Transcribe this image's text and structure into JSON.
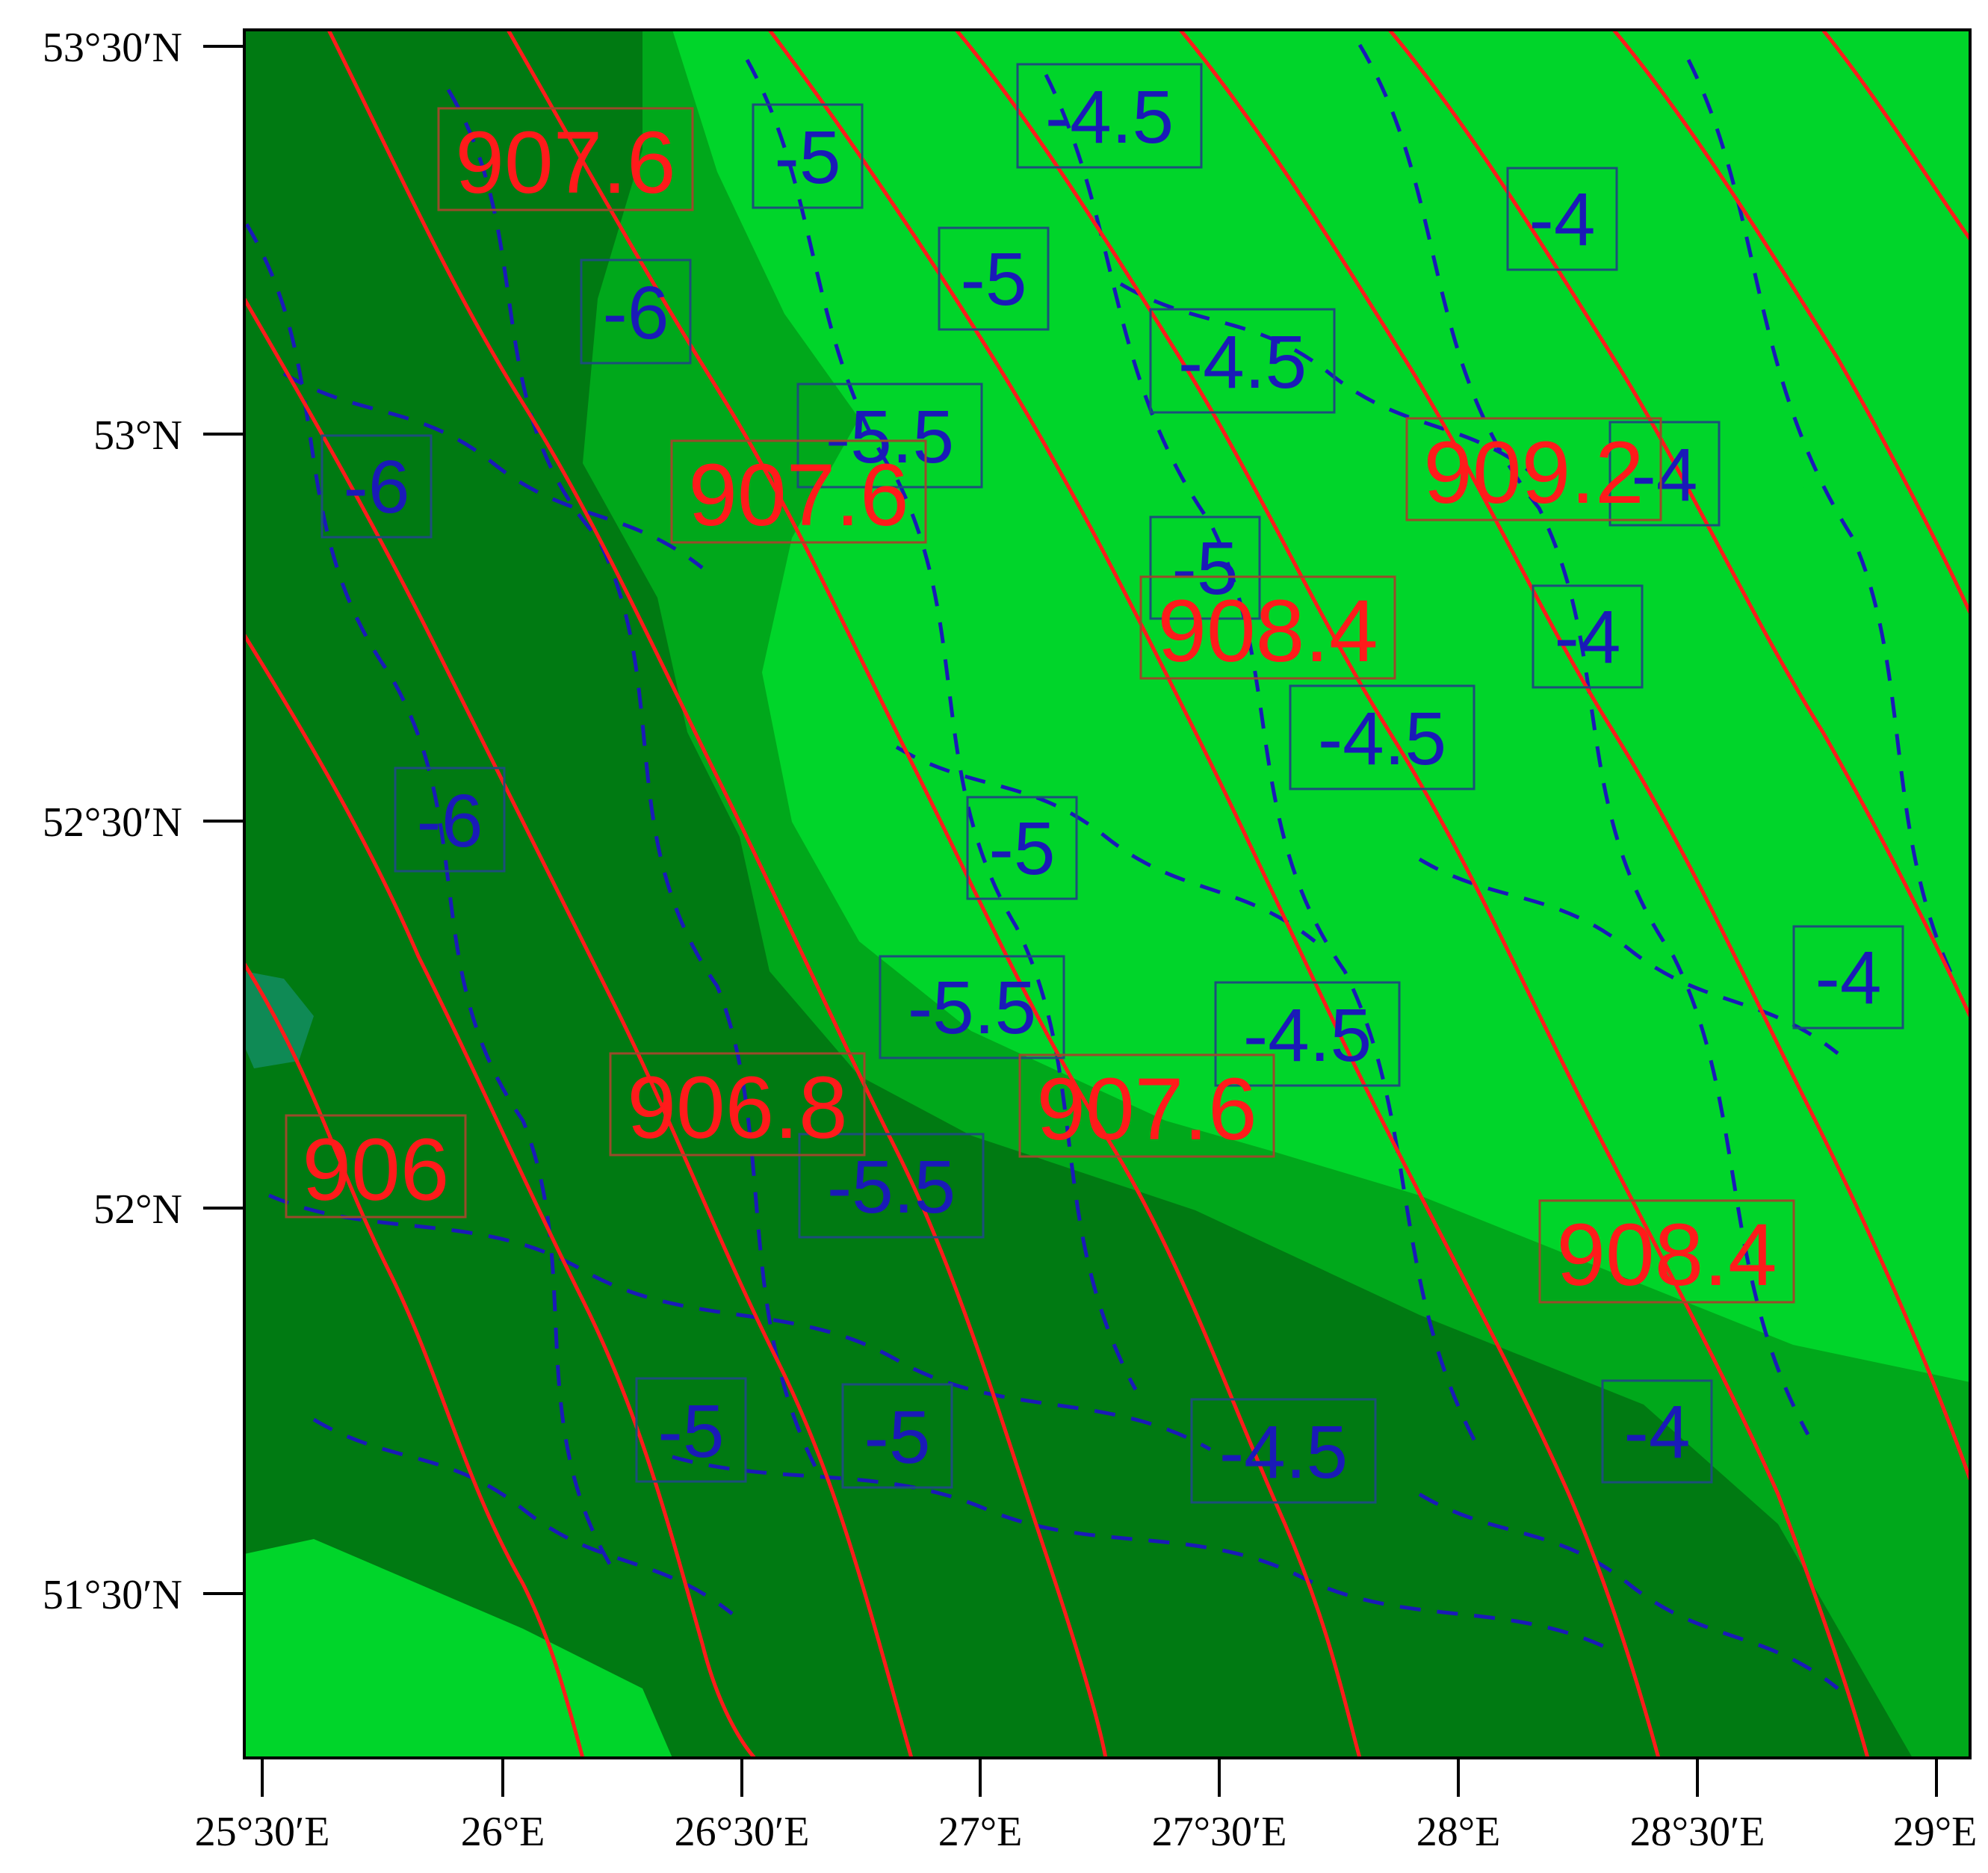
{
  "colors": {
    "background": "#ffffff",
    "fill_dark": "#007a12",
    "fill_mid": "#00a81b",
    "fill_light": "#00d52a",
    "fill_teal": "#0f8a55",
    "pressure_contour": "#ff1b1b",
    "temperature_contour": "#1a1ab8",
    "label_box_red": "#9a4a2a",
    "label_box_blue": "#1c4f7a"
  },
  "axes": {
    "y_ticks": [
      "53°30′N",
      "53°N",
      "52°30′N",
      "52°N",
      "51°30′N"
    ],
    "x_ticks": [
      "25°30′E",
      "26°E",
      "26°30′E",
      "27°E",
      "27°30′E",
      "28°E",
      "28°30′E",
      "29°E"
    ]
  },
  "pressure_labels": [
    {
      "text": "907.6"
    },
    {
      "text": "907.6"
    },
    {
      "text": "909.2"
    },
    {
      "text": "908.4"
    },
    {
      "text": "906.8"
    },
    {
      "text": "907.6"
    },
    {
      "text": "906"
    },
    {
      "text": "908.4"
    }
  ],
  "temperature_labels": [
    {
      "text": "-5"
    },
    {
      "text": "-4.5"
    },
    {
      "text": "-4"
    },
    {
      "text": "-5"
    },
    {
      "text": "-6"
    },
    {
      "text": "-4.5"
    },
    {
      "text": "-5.5"
    },
    {
      "text": "-6"
    },
    {
      "text": "-4"
    },
    {
      "text": "-5"
    },
    {
      "text": "-4"
    },
    {
      "text": "-4.5"
    },
    {
      "text": "-6"
    },
    {
      "text": "-5"
    },
    {
      "text": "-5.5"
    },
    {
      "text": "-4.5"
    },
    {
      "text": "-4"
    },
    {
      "text": "-5.5"
    },
    {
      "text": "-5"
    },
    {
      "text": "-5"
    },
    {
      "text": "-4.5"
    },
    {
      "text": "-4"
    }
  ]
}
